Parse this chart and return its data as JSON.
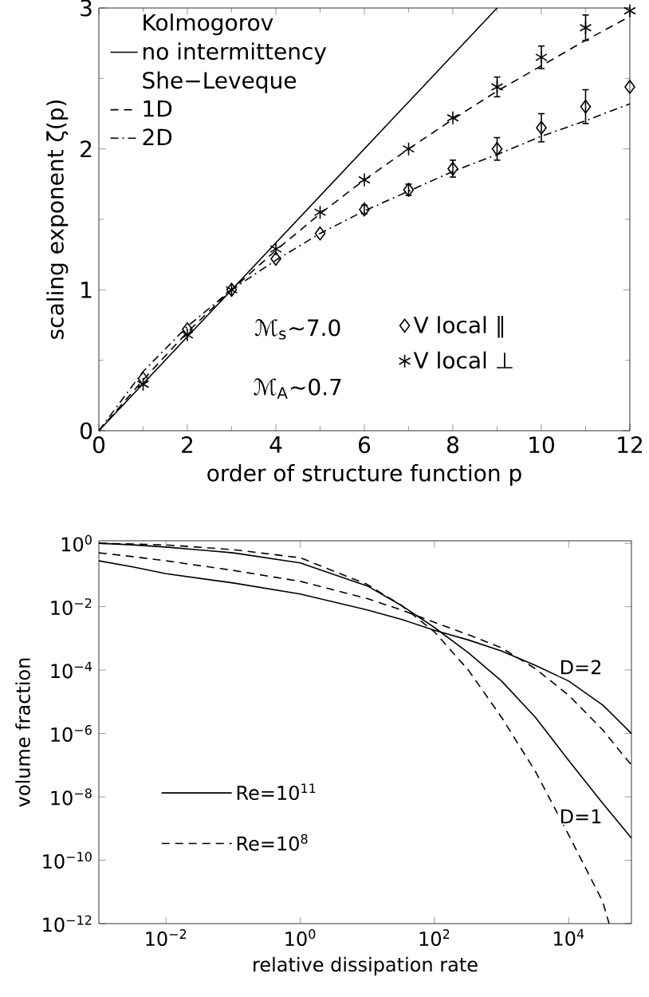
{
  "chart_data": [
    {
      "type": "line",
      "xlabel": "order of structure function p",
      "ylabel": "scaling exponent ζ(p)",
      "xlim": [
        0,
        12
      ],
      "ylim": [
        0,
        3
      ],
      "xticks": [
        0,
        2,
        4,
        6,
        8,
        10,
        12
      ],
      "yticks": [
        0,
        1,
        2,
        3
      ],
      "legend": "top left",
      "annotations": [
        "Kolmogorov",
        "She−Leveque",
        "ℳ$_{s}$~7.0",
        "ℳ$_{A}$~0.7"
      ],
      "series": [
        {
          "name": "no intermittency",
          "type": "line",
          "color": "#000000",
          "line_style": "solid",
          "x": [
            0,
            9
          ],
          "values": [
            0,
            3
          ]
        },
        {
          "name": "1D",
          "type": "line",
          "color": "#000000",
          "line_style": "dashed",
          "x": [
            0,
            1,
            2,
            3,
            4,
            5,
            6,
            7,
            8,
            9,
            10,
            11,
            12
          ],
          "values": [
            0,
            0.36,
            0.7,
            1.0,
            1.28,
            1.54,
            1.78,
            2.0,
            2.21,
            2.41,
            2.59,
            2.77,
            2.94
          ]
        },
        {
          "name": "2D",
          "type": "line",
          "color": "#000000",
          "line_style": "dashdot",
          "x": [
            0,
            1,
            2,
            3,
            4,
            5,
            6,
            7,
            8,
            9,
            10,
            11,
            12
          ],
          "values": [
            0,
            0.42,
            0.74,
            1.0,
            1.21,
            1.4,
            1.56,
            1.7,
            1.84,
            1.96,
            2.09,
            2.2,
            2.32
          ]
        },
        {
          "name": "V local ∥",
          "type": "scatter",
          "marker": "diamond",
          "color": "#000000",
          "x": [
            1,
            2,
            3,
            4,
            5,
            6,
            7,
            8,
            9,
            10,
            11,
            12
          ],
          "values": [
            0.37,
            0.72,
            1.0,
            1.22,
            1.4,
            1.57,
            1.71,
            1.86,
            2.0,
            2.15,
            2.3,
            2.44
          ],
          "errors": [
            null,
            null,
            null,
            null,
            null,
            0.03,
            0.04,
            0.06,
            0.08,
            0.1,
            0.12,
            null
          ]
        },
        {
          "name": "V local ⊥",
          "type": "scatter",
          "marker": "cross",
          "color": "#000000",
          "x": [
            1,
            2,
            3,
            4,
            5,
            6,
            7,
            8,
            9,
            10,
            11,
            12
          ],
          "values": [
            0.33,
            0.68,
            1.0,
            1.29,
            1.55,
            1.78,
            2.0,
            2.22,
            2.44,
            2.65,
            2.86,
            2.98
          ],
          "errors": [
            null,
            null,
            null,
            null,
            null,
            null,
            null,
            null,
            0.07,
            0.08,
            0.09,
            null
          ]
        }
      ]
    },
    {
      "type": "line",
      "xlabel": "relative dissipation rate",
      "ylabel": "volume fraction",
      "log": "xy",
      "xlim": [
        0.001,
        86000
      ],
      "ylim": [
        1e-12,
        1.2
      ],
      "legend": "bottom left",
      "xticks": [
        {
          "value": 0.01,
          "label": "10$^{−2}$"
        },
        {
          "value": 1,
          "label": "10$^{0}$"
        },
        {
          "value": 100,
          "label": "10$^{2}$"
        },
        {
          "value": 10000,
          "label": "10$^{4}$"
        }
      ],
      "yticks": [
        {
          "value": 1,
          "label": "10$^{0}$"
        },
        {
          "value": 0.01,
          "label": "10$^{−2}$"
        },
        {
          "value": 0.0001,
          "label": "10$^{−4}$"
        },
        {
          "value": 1e-06,
          "label": "10$^{−6}$"
        },
        {
          "value": 1e-08,
          "label": "10$^{−8}$"
        },
        {
          "value": 1e-10,
          "label": "10$^{−10}$"
        },
        {
          "value": 1e-12,
          "label": "10$^{−12}$"
        }
      ],
      "annotations": [
        "D=2",
        "D=1"
      ],
      "series": [
        {
          "name": "Re=10$^{11}$",
          "color": "#000000",
          "line_style": "solid",
          "x": [
            0.001,
            0.0032,
            0.01,
            0.1,
            1,
            10,
            32,
            100,
            320,
            1000,
            3200,
            10000,
            32000,
            86000
          ],
          "values": [
            0.28,
            0.18,
            0.11,
            0.056,
            0.025,
            0.0079,
            0.004,
            0.0018,
            0.00089,
            0.0004,
            0.00014,
            4.5e-05,
            7.9e-06,
            1e-06
          ]
        },
        {
          "color": "#000000",
          "line_style": "solid",
          "x": [
            0.001,
            0.0032,
            0.01,
            0.1,
            1,
            10,
            32,
            100,
            320,
            1000,
            3200,
            10000,
            32000,
            86000
          ],
          "values": [
            1,
            0.89,
            0.76,
            0.5,
            0.24,
            0.045,
            0.011,
            0.0022,
            0.00035,
            4.5e-05,
            3.2e-06,
            1.4e-07,
            6.3e-09,
            5e-10
          ]
        },
        {
          "name": "Re=10$^{8}$",
          "color": "#000000",
          "line_style": "dashed",
          "x": [
            0.001,
            0.0032,
            0.01,
            0.1,
            1,
            10,
            32,
            100,
            320,
            1000,
            3200,
            10000,
            32000,
            86000
          ],
          "values": [
            0.5,
            0.38,
            0.28,
            0.14,
            0.063,
            0.018,
            0.0079,
            0.0032,
            0.0013,
            0.0005,
            0.00011,
            1.6e-05,
            1.3e-06,
            1e-07
          ]
        },
        {
          "color": "#000000",
          "line_style": "dashed",
          "x": [
            0.001,
            0.0032,
            0.01,
            0.1,
            1,
            10,
            32,
            100,
            320,
            1000,
            3200,
            10000,
            32000,
            40000
          ],
          "values": [
            1,
            0.95,
            0.89,
            0.63,
            0.35,
            0.05,
            0.011,
            0.0016,
            0.0001,
            3.2e-06,
            6.3e-08,
            6.3e-10,
            5e-12,
            1e-12
          ]
        }
      ]
    }
  ]
}
